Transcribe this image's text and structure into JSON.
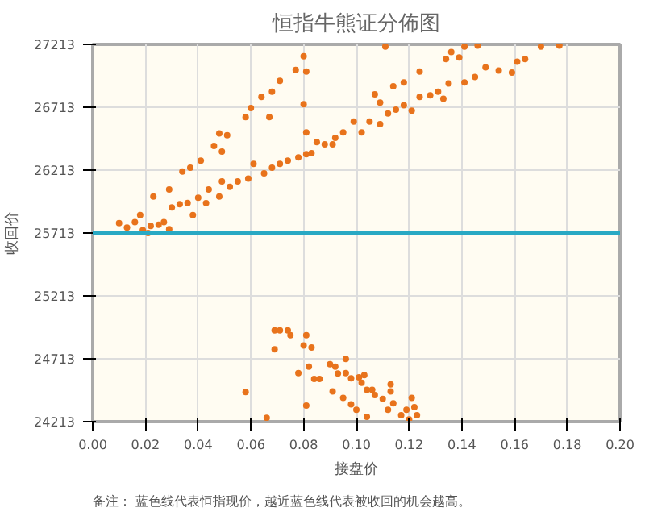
{
  "chart_data": {
    "type": "scatter",
    "title": "恒指牛熊证分佈图",
    "xlabel": "接盘价",
    "ylabel": "收回价",
    "annotations": [
      "备注：  蓝色线代表恒指现价，越近蓝色线代表被收回的机会越高。"
    ],
    "xlim": [
      0,
      0.2
    ],
    "xticks": [
      {
        "value": 0,
        "label": "0.00"
      },
      {
        "value": 0.02,
        "label": "0.02"
      },
      {
        "value": 0.04,
        "label": "0.04"
      },
      {
        "value": 0.06,
        "label": "0.06"
      },
      {
        "value": 0.08,
        "label": "0.08"
      },
      {
        "value": 0.1,
        "label": "0.10"
      },
      {
        "value": 0.12,
        "label": "0.12"
      },
      {
        "value": 0.14,
        "label": "0.14"
      },
      {
        "value": 0.16,
        "label": "0.16"
      },
      {
        "value": 0.18,
        "label": "0.18"
      },
      {
        "value": 0.2,
        "label": "0.20"
      }
    ],
    "ylim": [
      24213,
      27213
    ],
    "yticks": [
      24213,
      24713,
      25213,
      25713,
      26213,
      26713,
      27213
    ],
    "grid": true,
    "marker": "circle",
    "ref_lines": [
      {
        "axis": "y",
        "value": 25713,
        "color": "#29a9c4"
      }
    ],
    "series": [
      {
        "color": "#e8731c",
        "x": [
          0.01,
          0.013,
          0.016,
          0.018,
          0.019,
          0.021,
          0.022,
          0.025,
          0.027,
          0.029,
          0.03,
          0.033,
          0.036,
          0.038,
          0.04,
          0.043,
          0.044,
          0.048,
          0.049,
          0.052,
          0.055,
          0.059,
          0.061,
          0.065,
          0.068,
          0.071,
          0.074,
          0.078,
          0.081,
          0.083,
          0.085,
          0.088,
          0.091,
          0.092,
          0.095,
          0.099,
          0.102,
          0.105,
          0.109,
          0.112,
          0.115,
          0.118,
          0.121,
          0.124,
          0.128,
          0.131,
          0.133,
          0.135,
          0.141,
          0.145,
          0.149,
          0.154,
          0.159,
          0.161,
          0.164,
          0.17,
          0.177,
          0.023,
          0.029,
          0.034,
          0.037,
          0.041,
          0.046,
          0.048,
          0.049,
          0.051,
          0.058,
          0.06,
          0.064,
          0.067,
          0.068,
          0.071,
          0.077,
          0.08,
          0.081,
          0.08,
          0.081,
          0.107,
          0.109,
          0.111,
          0.114,
          0.118,
          0.124,
          0.134,
          0.136,
          0.139,
          0.141,
          0.146,
          0.058,
          0.066,
          0.069,
          0.069,
          0.071,
          0.074,
          0.075,
          0.078,
          0.08,
          0.081,
          0.082,
          0.083,
          0.081,
          0.084,
          0.086,
          0.09,
          0.092,
          0.091,
          0.093,
          0.096,
          0.096,
          0.095,
          0.098,
          0.098,
          0.1,
          0.101,
          0.103,
          0.102,
          0.104,
          0.104,
          0.106,
          0.107,
          0.11,
          0.112,
          0.113,
          0.113,
          0.114,
          0.117,
          0.119,
          0.12,
          0.121,
          0.122,
          0.123
        ],
        "values": [
          25791,
          25756,
          25799,
          25856,
          25735,
          25713,
          25769,
          25778,
          25799,
          25743,
          25916,
          25942,
          25951,
          25856,
          25994,
          25951,
          26059,
          26003,
          26124,
          26080,
          26124,
          26145,
          26262,
          26188,
          26232,
          26262,
          26288,
          26314,
          26340,
          26348,
          26435,
          26418,
          26418,
          26469,
          26513,
          26599,
          26513,
          26599,
          26578,
          26664,
          26694,
          26729,
          26686,
          26794,
          26807,
          26837,
          26781,
          26902,
          26910,
          26954,
          27031,
          27005,
          26988,
          27075,
          27096,
          27196,
          27204,
          26003,
          26059,
          26201,
          26232,
          26288,
          26405,
          26504,
          26361,
          26491,
          26634,
          26707,
          26794,
          26634,
          26837,
          26923,
          27010,
          27118,
          26997,
          26737,
          26513,
          26815,
          26750,
          27196,
          26880,
          26910,
          26997,
          27096,
          27152,
          27109,
          27196,
          27204,
          24449,
          24243,
          24789,
          24939,
          24939,
          24939,
          24901,
          24600,
          24819,
          24901,
          24651,
          24802,
          24342,
          24553,
          24553,
          24669,
          24651,
          24454,
          24596,
          24712,
          24600,
          24402,
          24557,
          24351,
          24308,
          24566,
          24583,
          24522,
          24252,
          24467,
          24467,
          24424,
          24394,
          24308,
          24510,
          24454,
          24359,
          24265,
          24308,
          24230,
          24402,
          24329,
          24265
        ]
      }
    ]
  }
}
